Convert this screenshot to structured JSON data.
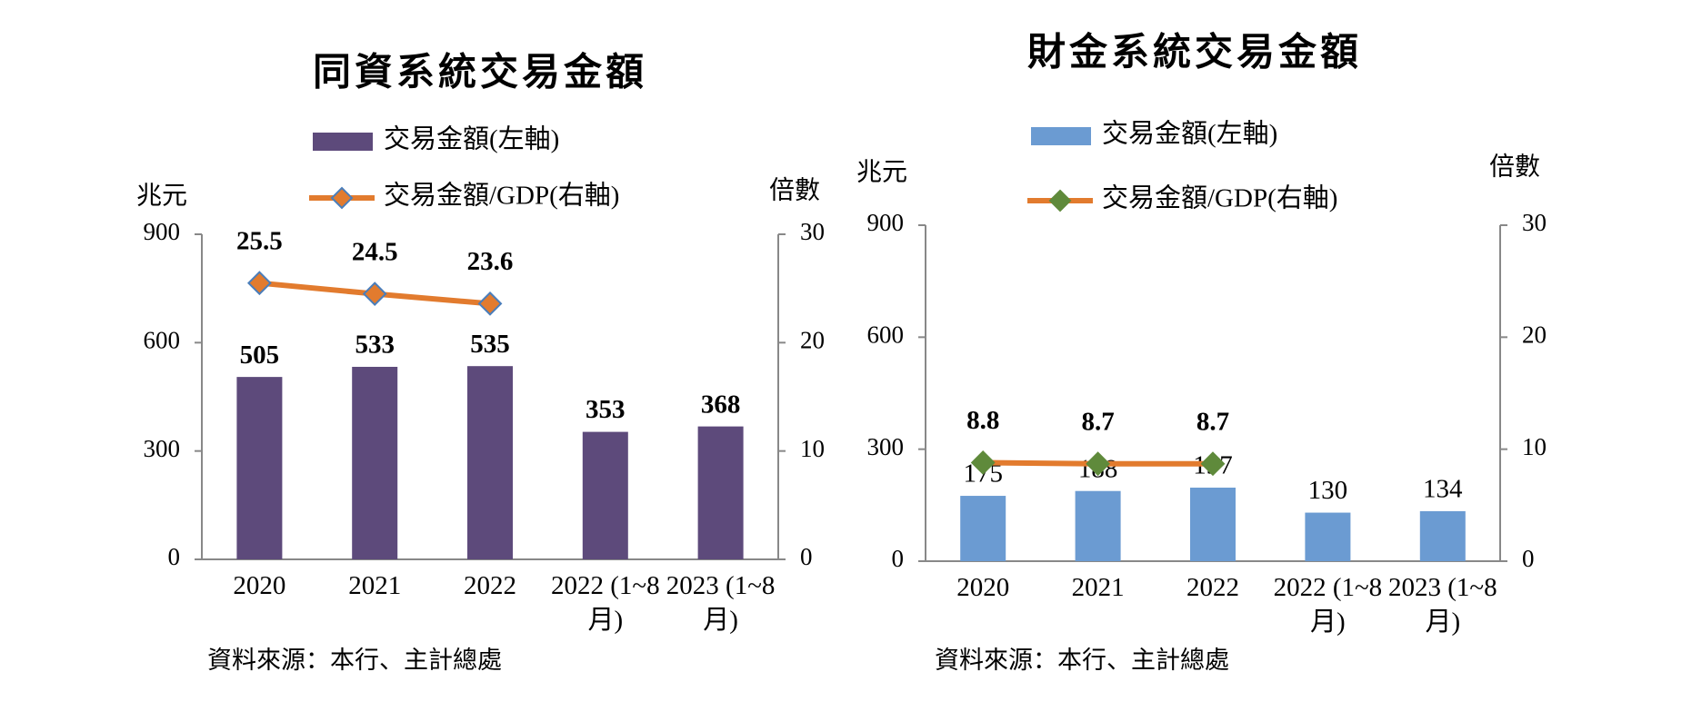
{
  "chart_data": [
    {
      "type": "bar",
      "title": "同資系統交易金額",
      "y_label": "兆元",
      "y2_label": "倍數",
      "source": "資料來源：本行、主計總處",
      "categories": [
        "2020",
        "2021",
        "2022",
        "2022 (1~8月)",
        "2023 (1~8月)"
      ],
      "series": [
        {
          "name": "交易金額(左軸)",
          "type": "bar",
          "color": "#5d4a7b",
          "values": [
            505,
            533,
            535,
            353,
            368
          ]
        },
        {
          "name": "交易金額/GDP(右軸)",
          "type": "line",
          "axis": "y2",
          "color": "#e27b2e",
          "marker_color": "#e27b2e",
          "marker_edge": "#4a7ebb",
          "values": [
            25.5,
            24.5,
            23.6,
            null,
            null
          ]
        }
      ],
      "ylim": [
        0,
        900
      ],
      "yticks": [
        0,
        300,
        600,
        900
      ],
      "y2lim": [
        0,
        30
      ],
      "y2ticks": [
        0,
        10,
        20,
        30
      ]
    },
    {
      "type": "bar",
      "title": "財金系統交易金額",
      "y_label": "兆元",
      "y2_label": "倍數",
      "source": "資料來源：本行、主計總處",
      "categories": [
        "2020",
        "2021",
        "2022",
        "2022 (1~8月)",
        "2023 (1~8月)"
      ],
      "series": [
        {
          "name": "交易金額(左軸)",
          "type": "bar",
          "color": "#6b9bd2",
          "values": [
            175,
            188,
            197,
            130,
            134
          ]
        },
        {
          "name": "交易金額/GDP(右軸)",
          "type": "line",
          "axis": "y2",
          "color": "#e27b2e",
          "marker_color": "#5f8a3b",
          "marker_edge": "#5f8a3b",
          "values": [
            8.8,
            8.7,
            8.7,
            null,
            null
          ]
        }
      ],
      "ylim": [
        0,
        900
      ],
      "yticks": [
        0,
        300,
        600,
        900
      ],
      "y2lim": [
        0,
        30
      ],
      "y2ticks": [
        0,
        10,
        20,
        30
      ]
    }
  ]
}
